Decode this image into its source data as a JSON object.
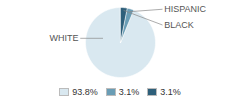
{
  "chart_data": {
    "type": "pie",
    "categories": [
      "WHITE",
      "HISPANIC",
      "BLACK"
    ],
    "values": [
      93.8,
      3.1,
      3.1
    ],
    "value_labels": [
      "93.8%",
      "3.1%",
      "3.1%"
    ],
    "colors": [
      "#d9e8f0",
      "#6a9db5",
      "#2e5f7a"
    ],
    "legend": "bottom"
  }
}
